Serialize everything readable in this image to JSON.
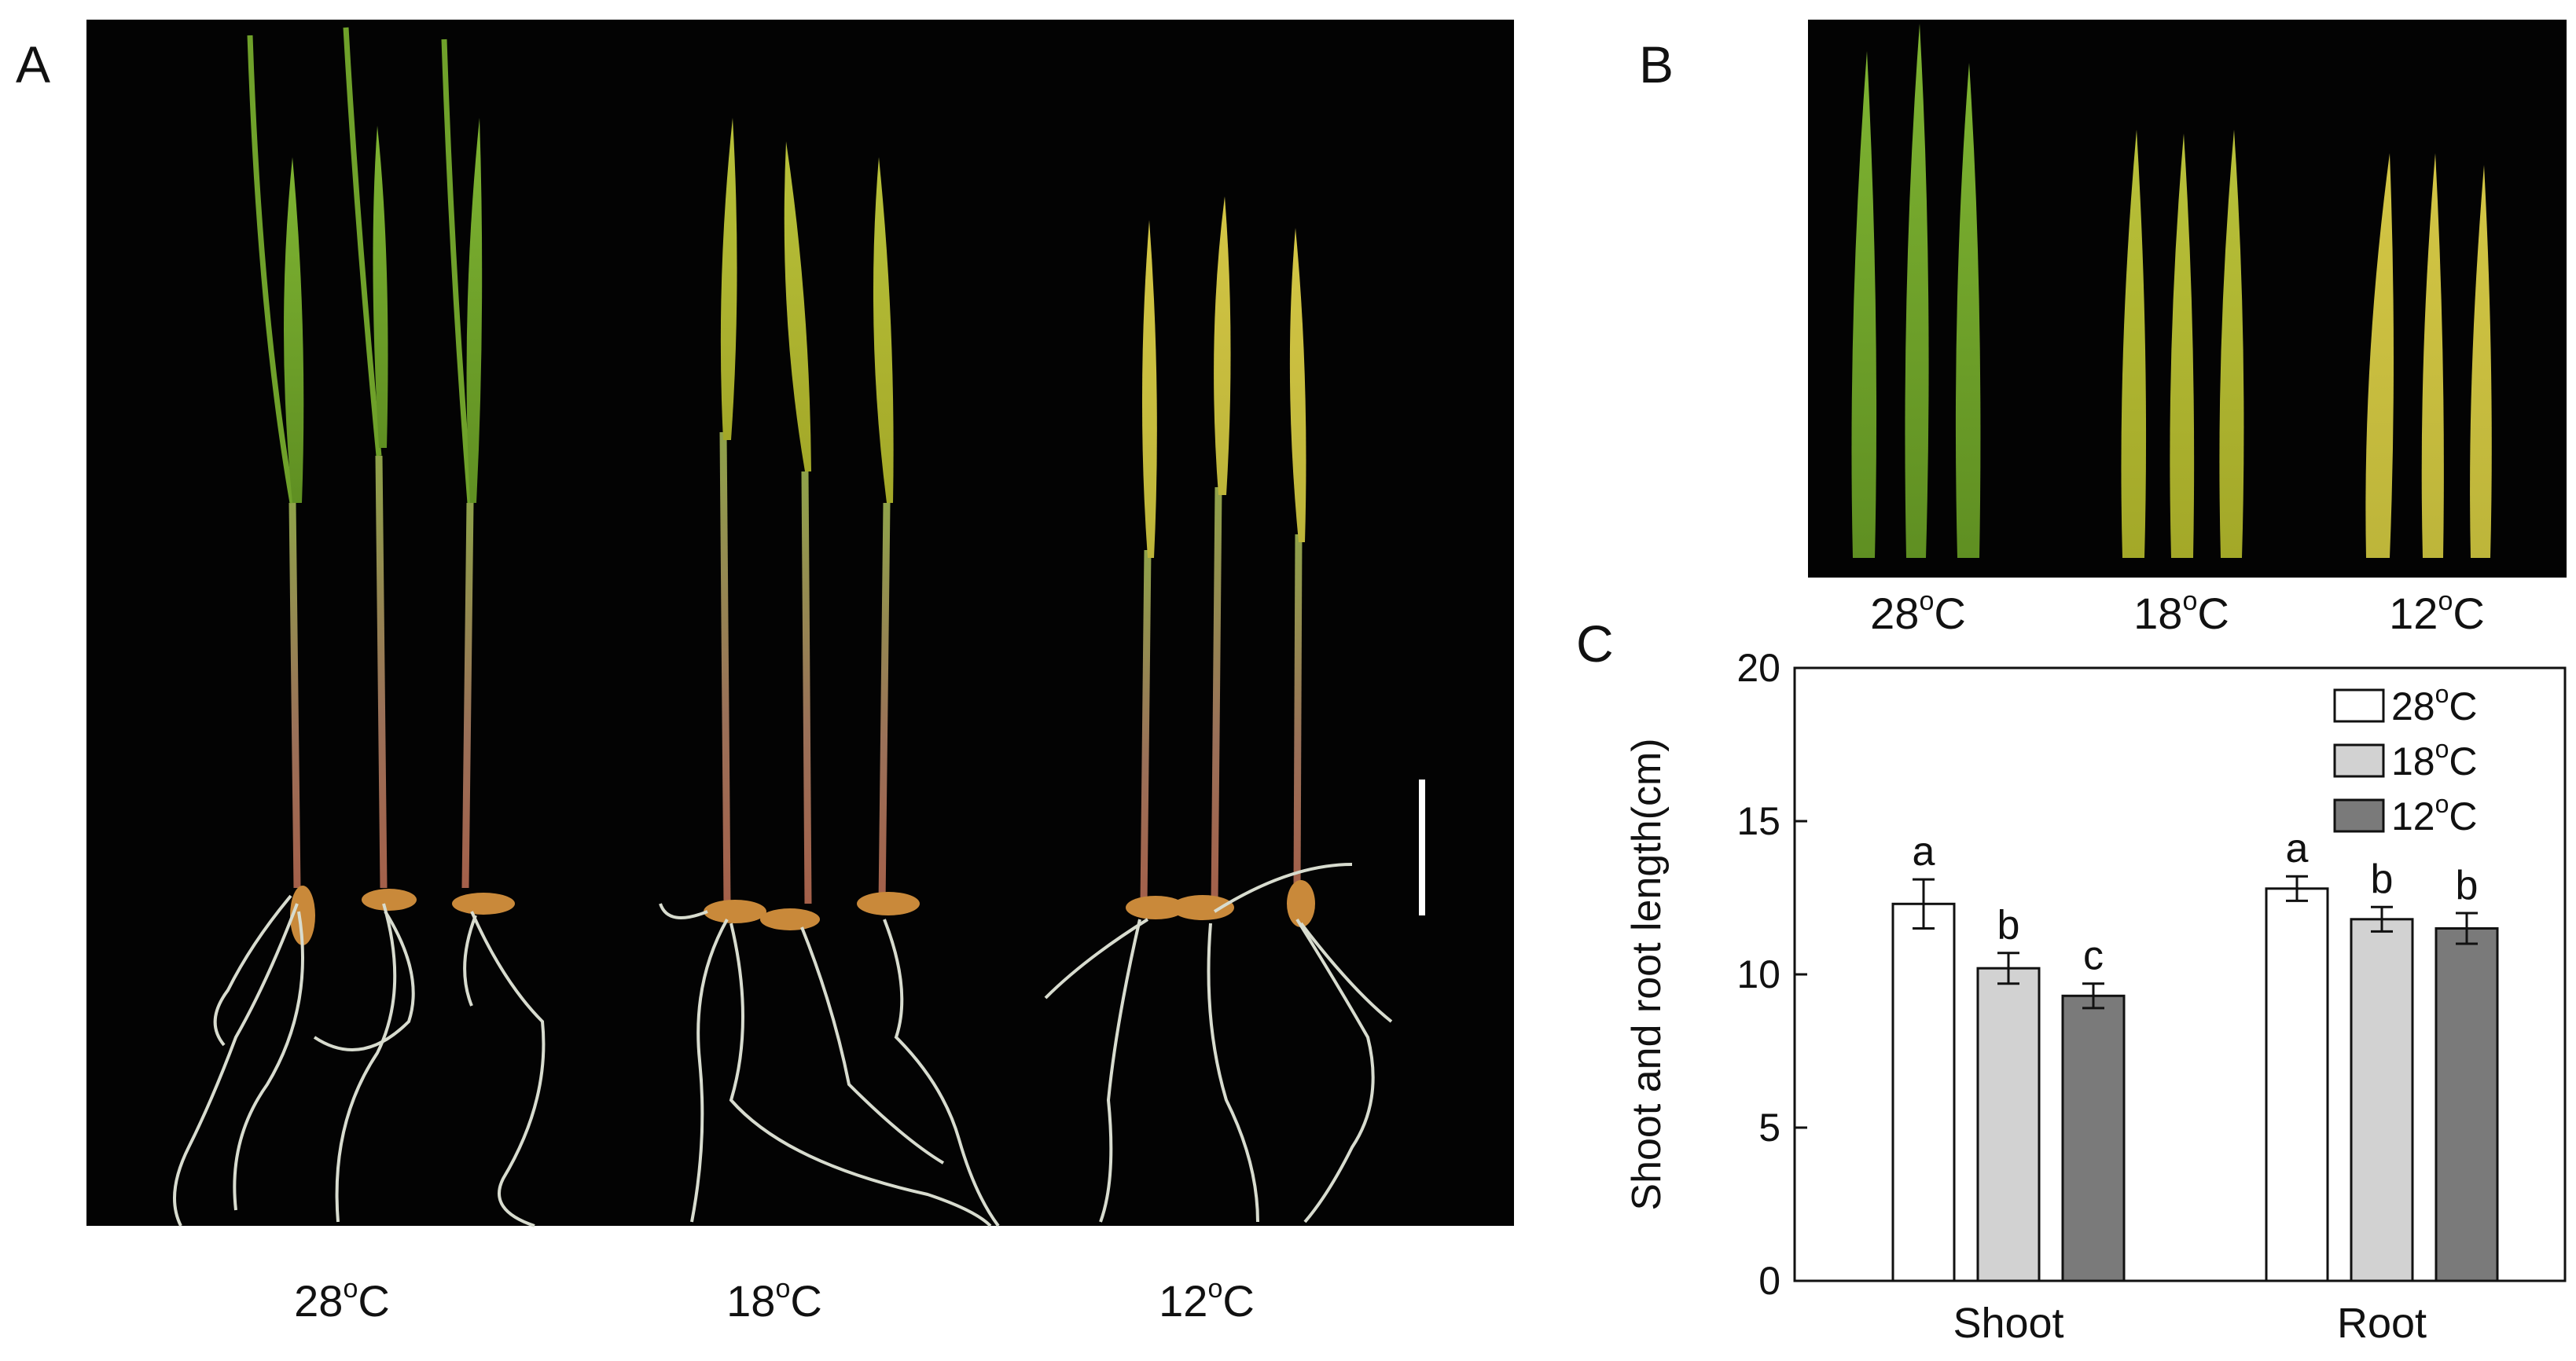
{
  "panels": {
    "a": {
      "letter": "A",
      "labels": [
        "28",
        "18",
        "12"
      ],
      "unit": "C",
      "degree": "o"
    },
    "b": {
      "letter": "B",
      "labels": [
        "28",
        "18",
        "12"
      ],
      "unit": "C",
      "degree": "o"
    },
    "c": {
      "letter": "C"
    }
  },
  "colors": {
    "photo_bg": "#030303",
    "leaf_green": "#6fa12a",
    "leaf_yellowgreen": "#b5b82e",
    "leaf_yellow": "#c9c33c",
    "stem_red": "#8a5a4a",
    "root_white": "#d8dccf",
    "seed_brown": "#c9893a"
  },
  "chart_data": {
    "type": "bar",
    "title": "",
    "xlabel": "",
    "ylabel": "Shoot and root length(cm)",
    "categories": [
      "Shoot",
      "Root"
    ],
    "ylim": [
      0,
      20
    ],
    "yticks": [
      0,
      5,
      10,
      15,
      20
    ],
    "grid": false,
    "legend_position": "top-right",
    "series": [
      {
        "name": "28",
        "color": "#ffffff",
        "values": [
          12.3,
          12.8
        ],
        "errors": [
          0.8,
          0.4
        ],
        "letters": [
          "a",
          "a"
        ]
      },
      {
        "name": "18",
        "color": "#d2d2d2",
        "values": [
          10.2,
          11.8
        ],
        "errors": [
          0.5,
          0.4
        ],
        "letters": [
          "b",
          "b"
        ]
      },
      {
        "name": "12",
        "color": "#7a7a7a",
        "values": [
          9.3,
          11.5
        ],
        "errors": [
          0.4,
          0.5
        ],
        "letters": [
          "c",
          "b"
        ]
      }
    ],
    "legend_unit": "C",
    "legend_degree": "o"
  }
}
